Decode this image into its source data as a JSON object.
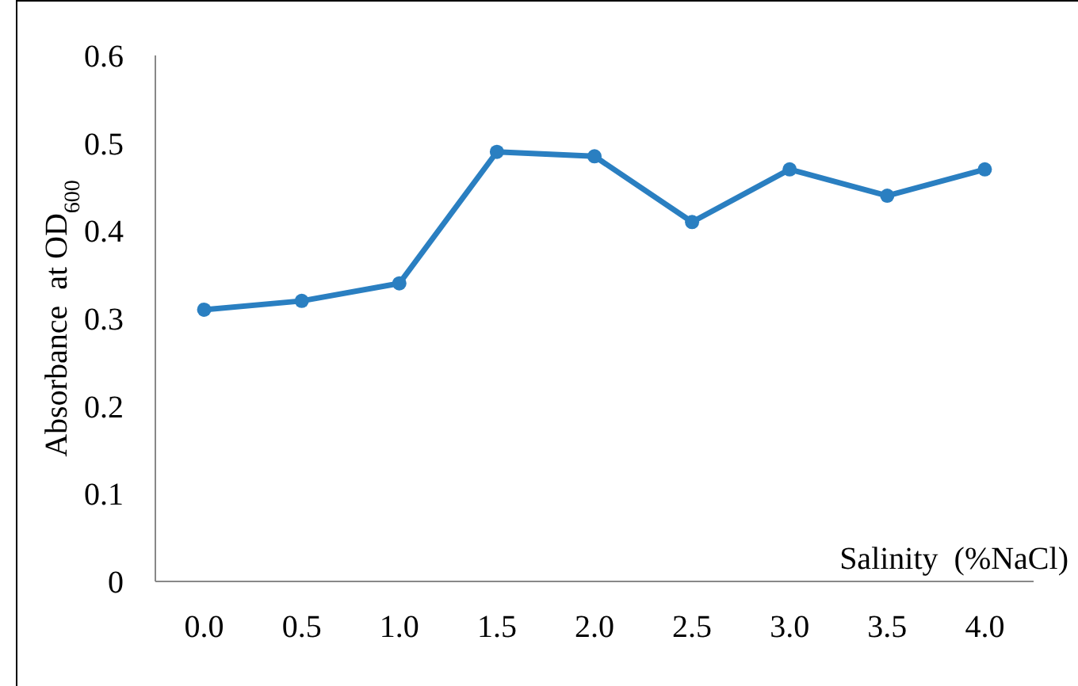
{
  "chart_data": {
    "type": "line",
    "xlabel": "Salinity  (%NaCl)",
    "ylabel": "Absorbance  at OD$_{600}$",
    "categories": [
      "0.0",
      "0.5",
      "1.0",
      "1.5",
      "2.0",
      "2.5",
      "3.0",
      "3.5",
      "4.0"
    ],
    "series": [
      {
        "color": "#2a7fc1",
        "values": [
          0.31,
          0.32,
          0.34,
          0.49,
          0.485,
          0.41,
          0.47,
          0.44,
          0.47
        ]
      }
    ],
    "ylim": [
      0,
      0.6
    ],
    "yticks": [
      0,
      0.1,
      0.2,
      0.3,
      0.4,
      0.5,
      0.6
    ],
    "marker": "circle",
    "line_style": "solid"
  }
}
